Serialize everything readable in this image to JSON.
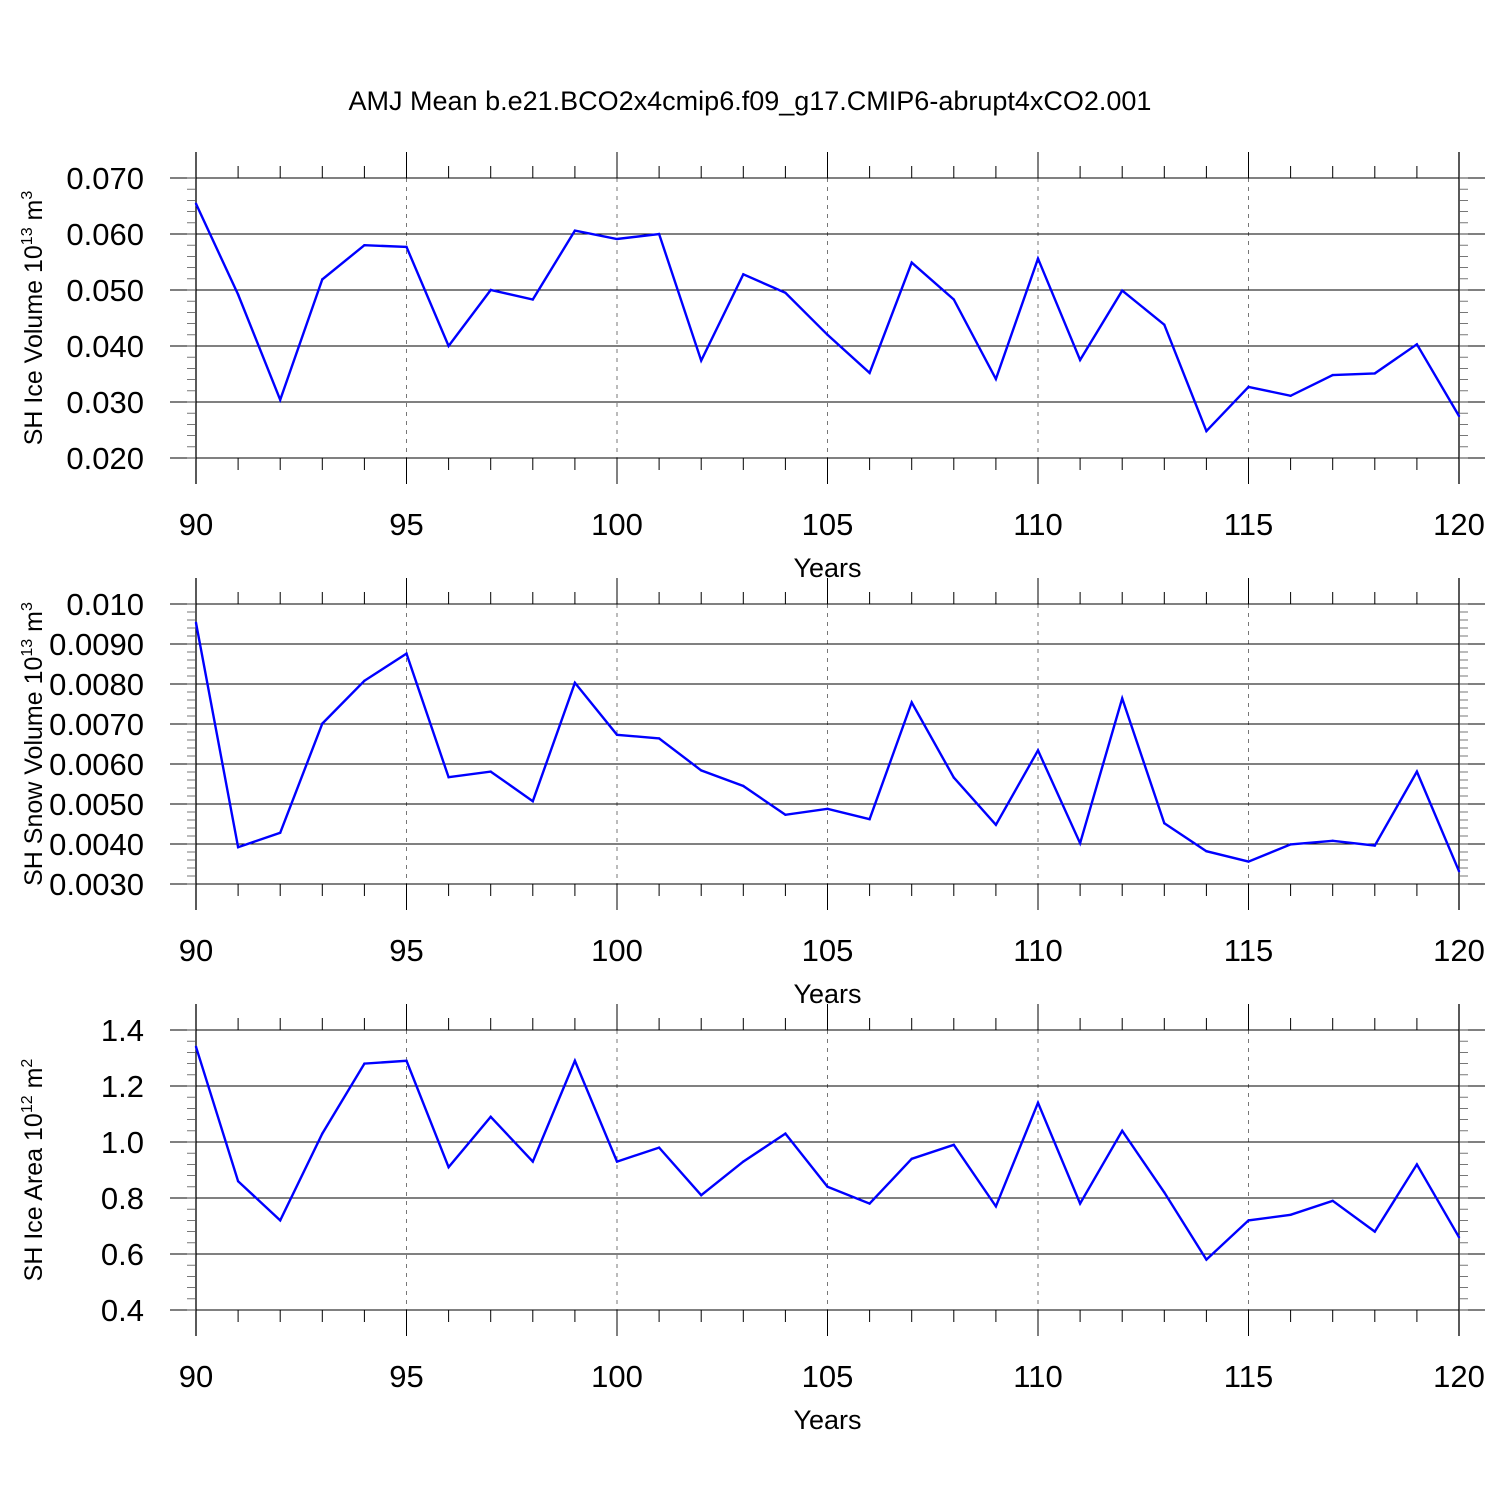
{
  "title": "AMJ Mean b.e21.BCO2x4cmip6.f09_g17.CMIP6-abrupt4xCO2.001",
  "line_color": "#0000ff",
  "chart_data": [
    {
      "type": "line",
      "ylabel_main": "SH Ice Volume 10",
      "ylabel_exp": "13",
      "ylabel_unit": " m",
      "ylabel_unit_exp": "3",
      "xlabel": "Years",
      "xlim": [
        90,
        120
      ],
      "xticks": [
        90,
        95,
        100,
        105,
        110,
        115,
        120
      ],
      "ylim": [
        0.02,
        0.07
      ],
      "yticks": [
        0.02,
        0.03,
        0.04,
        0.05,
        0.06,
        0.07
      ],
      "ytick_labels": [
        "0.020",
        "0.030",
        "0.040",
        "0.050",
        "0.060",
        "0.070"
      ],
      "yminor_step": 0.002,
      "x": [
        90,
        91,
        92,
        93,
        94,
        95,
        96,
        97,
        98,
        99,
        100,
        101,
        102,
        103,
        104,
        105,
        106,
        107,
        108,
        109,
        110,
        111,
        112,
        113,
        114,
        115,
        116,
        117,
        118,
        119,
        120
      ],
      "values": [
        0.0654,
        0.0492,
        0.0304,
        0.0519,
        0.058,
        0.0577,
        0.04,
        0.05,
        0.0483,
        0.0606,
        0.0591,
        0.06,
        0.0374,
        0.0528,
        0.0495,
        0.042,
        0.0352,
        0.0549,
        0.0483,
        0.0341,
        0.0556,
        0.0375,
        0.0499,
        0.0438,
        0.0248,
        0.0327,
        0.0311,
        0.0348,
        0.0351,
        0.0403,
        0.0275
      ]
    },
    {
      "type": "line",
      "ylabel_main": "SH Snow Volume 10",
      "ylabel_exp": "13",
      "ylabel_unit": " m",
      "ylabel_unit_exp": "3",
      "xlabel": "Years",
      "xlim": [
        90,
        120
      ],
      "xticks": [
        90,
        95,
        100,
        105,
        110,
        115,
        120
      ],
      "ylim": [
        0.003,
        0.01
      ],
      "yticks": [
        0.003,
        0.004,
        0.005,
        0.006,
        0.007,
        0.008,
        0.009,
        0.01
      ],
      "ytick_labels": [
        "0.0030",
        "0.0040",
        "0.0050",
        "0.0060",
        "0.0070",
        "0.0080",
        "0.0090",
        "0.010"
      ],
      "yminor_step": 0.0002,
      "x": [
        90,
        91,
        92,
        93,
        94,
        95,
        96,
        97,
        98,
        99,
        100,
        101,
        102,
        103,
        104,
        105,
        106,
        107,
        108,
        109,
        110,
        111,
        112,
        113,
        114,
        115,
        116,
        117,
        118,
        119,
        120
      ],
      "values": [
        0.00953,
        0.00392,
        0.00428,
        0.00701,
        0.00808,
        0.00876,
        0.00567,
        0.00581,
        0.00507,
        0.00803,
        0.00673,
        0.00664,
        0.00584,
        0.00545,
        0.00473,
        0.00488,
        0.00462,
        0.00754,
        0.00566,
        0.00448,
        0.00634,
        0.00402,
        0.00764,
        0.00452,
        0.00382,
        0.00356,
        0.00399,
        0.00408,
        0.00396,
        0.00581,
        0.00332
      ]
    },
    {
      "type": "line",
      "ylabel_main": "SH Ice Area 10",
      "ylabel_exp": "12",
      "ylabel_unit": " m",
      "ylabel_unit_exp": "2",
      "xlabel": "Years",
      "xlim": [
        90,
        120
      ],
      "xticks": [
        90,
        95,
        100,
        105,
        110,
        115,
        120
      ],
      "ylim": [
        0.4,
        1.4
      ],
      "yticks": [
        0.4,
        0.6,
        0.8,
        1.0,
        1.2,
        1.4
      ],
      "ytick_labels": [
        "0.4",
        "0.6",
        "0.8",
        "1.0",
        "1.2",
        "1.4"
      ],
      "yminor_step": 0.04,
      "x": [
        90,
        91,
        92,
        93,
        94,
        95,
        96,
        97,
        98,
        99,
        100,
        101,
        102,
        103,
        104,
        105,
        106,
        107,
        108,
        109,
        110,
        111,
        112,
        113,
        114,
        115,
        116,
        117,
        118,
        119,
        120
      ],
      "values": [
        1.34,
        0.86,
        0.72,
        1.03,
        1.28,
        1.29,
        0.91,
        1.09,
        0.93,
        1.29,
        0.93,
        0.98,
        0.81,
        0.93,
        1.03,
        0.84,
        0.78,
        0.94,
        0.99,
        0.77,
        1.14,
        0.78,
        1.04,
        0.82,
        0.58,
        0.72,
        0.74,
        0.79,
        0.68,
        0.92,
        0.66
      ]
    }
  ]
}
